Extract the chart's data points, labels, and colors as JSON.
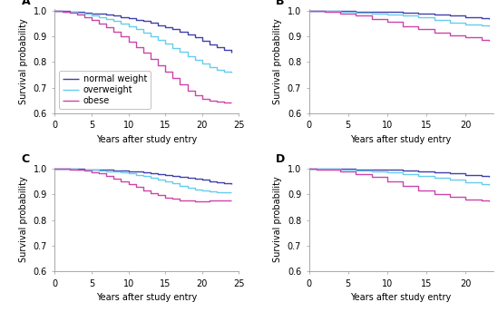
{
  "colors": {
    "normal": "#4040aa",
    "overweight": "#66ccee",
    "obese": "#cc44aa"
  },
  "legend_labels": [
    "normal weight",
    "overweight",
    "obese"
  ],
  "panel_labels": [
    "A",
    "B",
    "C",
    "D"
  ],
  "xlabel": "Years after study entry",
  "ylabel": "Survival probability",
  "panels": {
    "A": {
      "xlim": [
        0,
        25
      ],
      "ylim": [
        0.6,
        1.005
      ],
      "yticks": [
        0.6,
        0.7,
        0.8,
        0.9,
        1.0
      ],
      "xticks": [
        0,
        5,
        10,
        15,
        20,
        25
      ],
      "normal": [
        [
          0,
          1.0
        ],
        [
          0.5,
          0.999
        ],
        [
          1,
          0.998
        ],
        [
          2,
          0.997
        ],
        [
          3,
          0.995
        ],
        [
          4,
          0.993
        ],
        [
          5,
          0.99
        ],
        [
          6,
          0.987
        ],
        [
          7,
          0.984
        ],
        [
          8,
          0.98
        ],
        [
          9,
          0.975
        ],
        [
          10,
          0.97
        ],
        [
          11,
          0.965
        ],
        [
          12,
          0.959
        ],
        [
          13,
          0.952
        ],
        [
          14,
          0.944
        ],
        [
          15,
          0.936
        ],
        [
          16,
          0.927
        ],
        [
          17,
          0.917
        ],
        [
          18,
          0.906
        ],
        [
          19,
          0.896
        ],
        [
          20,
          0.883
        ],
        [
          21,
          0.87
        ],
        [
          22,
          0.858
        ],
        [
          23,
          0.848
        ],
        [
          24,
          0.838
        ]
      ],
      "overweight": [
        [
          0,
          1.0
        ],
        [
          0.5,
          0.999
        ],
        [
          1,
          0.997
        ],
        [
          2,
          0.995
        ],
        [
          3,
          0.991
        ],
        [
          4,
          0.987
        ],
        [
          5,
          0.982
        ],
        [
          6,
          0.975
        ],
        [
          7,
          0.968
        ],
        [
          8,
          0.959
        ],
        [
          9,
          0.95
        ],
        [
          10,
          0.939
        ],
        [
          11,
          0.927
        ],
        [
          12,
          0.914
        ],
        [
          13,
          0.901
        ],
        [
          14,
          0.886
        ],
        [
          15,
          0.871
        ],
        [
          16,
          0.856
        ],
        [
          17,
          0.84
        ],
        [
          18,
          0.824
        ],
        [
          19,
          0.808
        ],
        [
          20,
          0.793
        ],
        [
          21,
          0.781
        ],
        [
          22,
          0.769
        ],
        [
          23,
          0.763
        ],
        [
          24,
          0.758
        ]
      ],
      "obese": [
        [
          0,
          1.0
        ],
        [
          0.5,
          0.998
        ],
        [
          1,
          0.996
        ],
        [
          2,
          0.991
        ],
        [
          3,
          0.984
        ],
        [
          4,
          0.975
        ],
        [
          5,
          0.963
        ],
        [
          6,
          0.95
        ],
        [
          7,
          0.935
        ],
        [
          8,
          0.918
        ],
        [
          9,
          0.9
        ],
        [
          10,
          0.88
        ],
        [
          11,
          0.858
        ],
        [
          12,
          0.836
        ],
        [
          13,
          0.812
        ],
        [
          14,
          0.786
        ],
        [
          15,
          0.762
        ],
        [
          16,
          0.737
        ],
        [
          17,
          0.712
        ],
        [
          18,
          0.689
        ],
        [
          19,
          0.669
        ],
        [
          20,
          0.655
        ],
        [
          21,
          0.648
        ],
        [
          22,
          0.645
        ],
        [
          23,
          0.643
        ],
        [
          24,
          0.641
        ]
      ],
      "show_legend": true
    },
    "B": {
      "xlim": [
        0,
        23.5
      ],
      "ylim": [
        0.6,
        1.005
      ],
      "yticks": [
        0.6,
        0.7,
        0.8,
        0.9,
        1.0
      ],
      "xticks": [
        0,
        5,
        10,
        15,
        20
      ],
      "normal": [
        [
          0,
          1.0
        ],
        [
          1,
          0.9995
        ],
        [
          2,
          0.999
        ],
        [
          4,
          0.998
        ],
        [
          6,
          0.997
        ],
        [
          8,
          0.996
        ],
        [
          10,
          0.994
        ],
        [
          12,
          0.992
        ],
        [
          14,
          0.989
        ],
        [
          16,
          0.986
        ],
        [
          18,
          0.981
        ],
        [
          20,
          0.976
        ],
        [
          22,
          0.97
        ],
        [
          23,
          0.967
        ]
      ],
      "overweight": [
        [
          0,
          1.0
        ],
        [
          1,
          0.999
        ],
        [
          2,
          0.998
        ],
        [
          4,
          0.996
        ],
        [
          6,
          0.993
        ],
        [
          8,
          0.99
        ],
        [
          10,
          0.986
        ],
        [
          12,
          0.98
        ],
        [
          14,
          0.973
        ],
        [
          16,
          0.964
        ],
        [
          18,
          0.954
        ],
        [
          20,
          0.946
        ],
        [
          22,
          0.942
        ],
        [
          23,
          0.94
        ]
      ],
      "obese": [
        [
          0,
          1.0
        ],
        [
          1,
          0.998
        ],
        [
          2,
          0.995
        ],
        [
          4,
          0.989
        ],
        [
          6,
          0.98
        ],
        [
          8,
          0.968
        ],
        [
          10,
          0.955
        ],
        [
          12,
          0.94
        ],
        [
          14,
          0.927
        ],
        [
          16,
          0.915
        ],
        [
          18,
          0.904
        ],
        [
          20,
          0.895
        ],
        [
          22,
          0.887
        ],
        [
          23,
          0.884
        ]
      ],
      "show_legend": false
    },
    "C": {
      "xlim": [
        0,
        25
      ],
      "ylim": [
        0.6,
        1.005
      ],
      "yticks": [
        0.6,
        0.7,
        0.8,
        0.9,
        1.0
      ],
      "xticks": [
        0,
        5,
        10,
        15,
        20,
        25
      ],
      "normal": [
        [
          0,
          1.0
        ],
        [
          1,
          0.9998
        ],
        [
          2,
          0.9995
        ],
        [
          3,
          0.999
        ],
        [
          4,
          0.998
        ],
        [
          5,
          0.997
        ],
        [
          6,
          0.996
        ],
        [
          7,
          0.995
        ],
        [
          8,
          0.994
        ],
        [
          9,
          0.992
        ],
        [
          10,
          0.99
        ],
        [
          11,
          0.988
        ],
        [
          12,
          0.986
        ],
        [
          13,
          0.983
        ],
        [
          14,
          0.98
        ],
        [
          15,
          0.977
        ],
        [
          16,
          0.973
        ],
        [
          17,
          0.969
        ],
        [
          18,
          0.964
        ],
        [
          19,
          0.96
        ],
        [
          20,
          0.956
        ],
        [
          21,
          0.952
        ],
        [
          22,
          0.948
        ],
        [
          23,
          0.944
        ],
        [
          24,
          0.941
        ]
      ],
      "overweight": [
        [
          0,
          1.0
        ],
        [
          1,
          0.9997
        ],
        [
          2,
          0.999
        ],
        [
          3,
          0.998
        ],
        [
          4,
          0.997
        ],
        [
          5,
          0.995
        ],
        [
          6,
          0.993
        ],
        [
          7,
          0.991
        ],
        [
          8,
          0.988
        ],
        [
          9,
          0.985
        ],
        [
          10,
          0.981
        ],
        [
          11,
          0.977
        ],
        [
          12,
          0.972
        ],
        [
          13,
          0.966
        ],
        [
          14,
          0.959
        ],
        [
          15,
          0.951
        ],
        [
          16,
          0.942
        ],
        [
          17,
          0.934
        ],
        [
          18,
          0.926
        ],
        [
          19,
          0.92
        ],
        [
          20,
          0.915
        ],
        [
          21,
          0.912
        ],
        [
          22,
          0.91
        ],
        [
          23,
          0.909
        ],
        [
          24,
          0.908
        ]
      ],
      "obese": [
        [
          0,
          1.0
        ],
        [
          1,
          0.999
        ],
        [
          2,
          0.997
        ],
        [
          3,
          0.995
        ],
        [
          4,
          0.992
        ],
        [
          5,
          0.987
        ],
        [
          6,
          0.981
        ],
        [
          7,
          0.973
        ],
        [
          8,
          0.963
        ],
        [
          9,
          0.952
        ],
        [
          10,
          0.94
        ],
        [
          11,
          0.928
        ],
        [
          12,
          0.916
        ],
        [
          13,
          0.905
        ],
        [
          14,
          0.896
        ],
        [
          15,
          0.888
        ],
        [
          16,
          0.882
        ],
        [
          17,
          0.878
        ],
        [
          18,
          0.875
        ],
        [
          19,
          0.874
        ],
        [
          20,
          0.873
        ],
        [
          21,
          0.876
        ],
        [
          22,
          0.877
        ],
        [
          23,
          0.877
        ],
        [
          24,
          0.878
        ]
      ],
      "show_legend": false
    },
    "D": {
      "xlim": [
        0,
        23.5
      ],
      "ylim": [
        0.6,
        1.005
      ],
      "yticks": [
        0.6,
        0.7,
        0.8,
        0.9,
        1.0
      ],
      "xticks": [
        0,
        5,
        10,
        15,
        20
      ],
      "normal": [
        [
          0,
          1.0
        ],
        [
          1,
          0.9998
        ],
        [
          2,
          0.9995
        ],
        [
          4,
          0.999
        ],
        [
          6,
          0.998
        ],
        [
          8,
          0.997
        ],
        [
          10,
          0.995
        ],
        [
          12,
          0.993
        ],
        [
          14,
          0.99
        ],
        [
          16,
          0.986
        ],
        [
          18,
          0.982
        ],
        [
          20,
          0.977
        ],
        [
          22,
          0.972
        ],
        [
          23,
          0.97
        ]
      ],
      "overweight": [
        [
          0,
          1.0
        ],
        [
          1,
          0.9997
        ],
        [
          2,
          0.999
        ],
        [
          4,
          0.997
        ],
        [
          6,
          0.994
        ],
        [
          8,
          0.991
        ],
        [
          10,
          0.986
        ],
        [
          12,
          0.98
        ],
        [
          14,
          0.973
        ],
        [
          16,
          0.965
        ],
        [
          18,
          0.956
        ],
        [
          20,
          0.947
        ],
        [
          22,
          0.94
        ],
        [
          23,
          0.937
        ]
      ],
      "obese": [
        [
          0,
          1.0
        ],
        [
          1,
          0.998
        ],
        [
          2,
          0.996
        ],
        [
          4,
          0.99
        ],
        [
          6,
          0.98
        ],
        [
          8,
          0.967
        ],
        [
          10,
          0.951
        ],
        [
          12,
          0.933
        ],
        [
          14,
          0.916
        ],
        [
          16,
          0.901
        ],
        [
          18,
          0.889
        ],
        [
          20,
          0.881
        ],
        [
          22,
          0.876
        ],
        [
          23,
          0.874
        ]
      ],
      "show_legend": false
    }
  },
  "background_color": "#ffffff",
  "line_width": 1.0,
  "font_size_label": 7,
  "font_size_tick": 7,
  "font_size_panel": 9,
  "font_size_legend": 7
}
